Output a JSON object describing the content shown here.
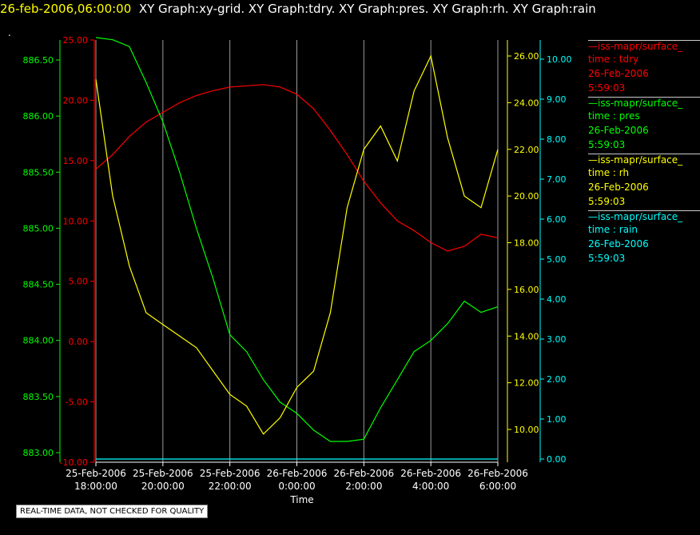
{
  "header": {
    "datetime": "26-feb-2006,06:00:00",
    "graphs": "XY Graph:xy-grid.  XY Graph:tdry.  XY Graph:pres.  XY Graph:rh.  XY Graph:rain",
    "dot": "."
  },
  "legend": [
    {
      "name": "—iss-mapr/surface_",
      "line1": "time : tdry",
      "line2": "26-Feb-2006",
      "line3": "5:59:03",
      "color": "#ff0000"
    },
    {
      "name": "—iss-mapr/surface_",
      "line1": "time : pres",
      "line2": "26-Feb-2006",
      "line3": "5:59:03",
      "color": "#00ff00"
    },
    {
      "name": "—iss-mapr/surface_",
      "line1": "time : rh",
      "line2": "26-Feb-2006",
      "line3": "5:59:03",
      "color": "#ffff00"
    },
    {
      "name": "—iss-mapr/surface_",
      "line1": "time : rain",
      "line2": "26-Feb-2006",
      "line3": "5:59:03",
      "color": "#00ffff"
    }
  ],
  "footer": "REAL-TIME DATA, NOT CHECKED FOR QUALITY",
  "chart_data": {
    "type": "line",
    "xlabel": "Time",
    "x_ticks": [
      {
        "h": 18,
        "date": "25-Feb-2006",
        "time": "18:00:00"
      },
      {
        "h": 20,
        "date": "25-Feb-2006",
        "time": "20:00:00"
      },
      {
        "h": 22,
        "date": "25-Feb-2006",
        "time": "22:00:00"
      },
      {
        "h": 24,
        "date": "26-Feb-2006",
        "time": "0:00:00"
      },
      {
        "h": 26,
        "date": "26-Feb-2006",
        "time": "2:00:00"
      },
      {
        "h": 28,
        "date": "26-Feb-2006",
        "time": "4:00:00"
      },
      {
        "h": 30,
        "date": "26-Feb-2006",
        "time": "6:00:00"
      }
    ],
    "xlim": [
      18,
      30
    ],
    "grid": "vertical",
    "axes": {
      "tdry": {
        "color": "#ff0000",
        "ylim": [
          -10,
          25
        ],
        "ticks": [
          "-10.00",
          "-5.00",
          "0.00",
          "5.00",
          "10.00",
          "15.00",
          "20.00",
          "25.00"
        ]
      },
      "pres": {
        "color": "#00ff00",
        "ylim": [
          882.92,
          886.92
        ],
        "ticks": [
          "883.00",
          "883.50",
          "884.00",
          "884.50",
          "885.00",
          "885.50",
          "886.00",
          "886.50"
        ]
      },
      "rh": {
        "color": "#ffff00",
        "ylim": [
          9.04,
          26.25
        ],
        "ticks": [
          "10.00",
          "12.00",
          "14.00",
          "16.00",
          "18.00",
          "20.00",
          "22.00",
          "24.00",
          "26.00"
        ]
      },
      "rain": {
        "color": "#00ffff",
        "ylim": [
          -0.05,
          10.7
        ],
        "ticks": [
          "0.00",
          "1.00",
          "2.00",
          "3.00",
          "4.00",
          "5.00",
          "6.00",
          "7.00",
          "8.00",
          "9.00",
          "10.00"
        ]
      }
    },
    "series": [
      {
        "name": "tdry",
        "axis": "tdry",
        "color": "#ff0000",
        "points": [
          [
            18.0,
            14.3
          ],
          [
            18.5,
            15.5
          ],
          [
            19.0,
            17.0
          ],
          [
            19.5,
            18.2
          ],
          [
            20.0,
            19.0
          ],
          [
            20.5,
            19.8
          ],
          [
            21.0,
            20.4
          ],
          [
            21.5,
            20.8
          ],
          [
            22.0,
            21.1
          ],
          [
            22.5,
            21.2
          ],
          [
            23.0,
            21.3
          ],
          [
            23.5,
            21.1
          ],
          [
            24.0,
            20.5
          ],
          [
            24.5,
            19.3
          ],
          [
            25.0,
            17.5
          ],
          [
            25.5,
            15.5
          ],
          [
            26.0,
            13.3
          ],
          [
            26.5,
            11.5
          ],
          [
            27.0,
            10.0
          ],
          [
            27.5,
            9.2
          ],
          [
            28.0,
            8.2
          ],
          [
            28.5,
            7.5
          ],
          [
            29.0,
            7.9
          ],
          [
            29.5,
            8.9
          ],
          [
            30.0,
            8.6
          ]
        ]
      },
      {
        "name": "pres",
        "axis": "pres",
        "color": "#00ff00",
        "points": [
          [
            18.0,
            886.7
          ],
          [
            18.5,
            886.68
          ],
          [
            19.0,
            886.62
          ],
          [
            19.5,
            886.3
          ],
          [
            20.0,
            885.95
          ],
          [
            20.5,
            885.5
          ],
          [
            21.0,
            885.0
          ],
          [
            21.5,
            884.55
          ],
          [
            22.0,
            884.05
          ],
          [
            22.5,
            883.9
          ],
          [
            23.0,
            883.65
          ],
          [
            23.5,
            883.45
          ],
          [
            24.0,
            883.35
          ],
          [
            24.5,
            883.2
          ],
          [
            25.0,
            883.1
          ],
          [
            25.5,
            883.1
          ],
          [
            26.0,
            883.12
          ],
          [
            26.5,
            883.4
          ],
          [
            27.0,
            883.65
          ],
          [
            27.5,
            883.9
          ],
          [
            28.0,
            884.0
          ],
          [
            28.5,
            884.15
          ],
          [
            29.0,
            884.35
          ],
          [
            29.5,
            884.25
          ],
          [
            30.0,
            884.3
          ]
        ]
      },
      {
        "name": "rh",
        "axis": "rh",
        "color": "#ffff00",
        "points": [
          [
            18.0,
            25.0
          ],
          [
            18.5,
            20.0
          ],
          [
            19.0,
            17.0
          ],
          [
            19.5,
            15.0
          ],
          [
            20.0,
            14.5
          ],
          [
            20.5,
            14.0
          ],
          [
            21.0,
            13.5
          ],
          [
            21.5,
            12.5
          ],
          [
            22.0,
            11.5
          ],
          [
            22.5,
            11.0
          ],
          [
            23.0,
            9.8
          ],
          [
            23.5,
            10.5
          ],
          [
            24.0,
            11.8
          ],
          [
            24.5,
            12.5
          ],
          [
            25.0,
            15.0
          ],
          [
            25.5,
            19.5
          ],
          [
            26.0,
            22.0
          ],
          [
            26.5,
            23.0
          ],
          [
            27.0,
            21.5
          ],
          [
            27.5,
            24.5
          ],
          [
            28.0,
            26.0
          ],
          [
            28.5,
            22.5
          ],
          [
            29.0,
            20.0
          ],
          [
            29.5,
            19.5
          ],
          [
            30.0,
            22.0
          ]
        ]
      },
      {
        "name": "rain",
        "axis": "rain",
        "color": "#00ffff",
        "points": [
          [
            18.0,
            0.0
          ],
          [
            30.0,
            0.0
          ]
        ]
      }
    ]
  }
}
